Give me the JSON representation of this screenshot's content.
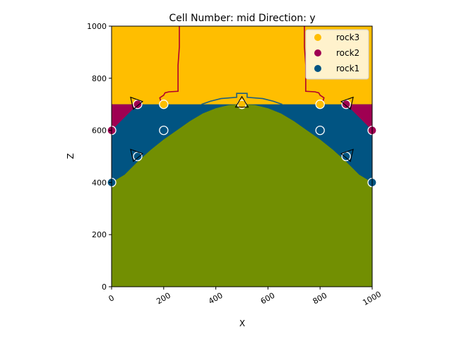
{
  "chart_data": {
    "type": "geological-section",
    "title": "Cell Number: mid Direction: y",
    "xlabel": "X",
    "ylabel": "Z",
    "xlim": [
      0,
      1000
    ],
    "ylim": [
      0,
      1000
    ],
    "xticks": [
      "0",
      "200",
      "400",
      "600",
      "800",
      "1000"
    ],
    "yticks": [
      "0",
      "200",
      "400",
      "600",
      "800",
      "1000"
    ],
    "grid": false,
    "legend": {
      "placement": "top-right",
      "entries": [
        {
          "label": "rock3",
          "color": "#ffbe00"
        },
        {
          "label": "rock2",
          "color": "#9f0052"
        },
        {
          "label": "rock1",
          "color": "#015482"
        }
      ]
    },
    "basement_color": "#728f02",
    "contact_line_color": "#b1002d",
    "contact_line_color_lower": "#1d5f80",
    "surfaces": {
      "rock3_rock2_base_z": 700,
      "rock1_top_left": [
        [
          0,
          700
        ],
        [
          100,
          700
        ],
        [
          200,
          700
        ],
        [
          300,
          700
        ]
      ],
      "rock2_wedge_left": [
        [
          0,
          700
        ],
        [
          100,
          700
        ],
        [
          0,
          600
        ]
      ],
      "rock2_wedge_right": [
        [
          900,
          700
        ],
        [
          1000,
          700
        ],
        [
          1000,
          600
        ]
      ],
      "rock1_base_dome": [
        [
          0,
          400
        ],
        [
          50,
          430
        ],
        [
          100,
          480
        ],
        [
          150,
          525
        ],
        [
          200,
          565
        ],
        [
          250,
          600
        ],
        [
          300,
          635
        ],
        [
          350,
          665
        ],
        [
          400,
          685
        ],
        [
          450,
          697
        ],
        [
          500,
          700
        ],
        [
          550,
          697
        ],
        [
          600,
          685
        ],
        [
          650,
          665
        ],
        [
          700,
          635
        ],
        [
          750,
          600
        ],
        [
          800,
          565
        ],
        [
          850,
          525
        ],
        [
          900,
          480
        ],
        [
          950,
          430
        ],
        [
          1000,
          400
        ]
      ]
    },
    "fault_lines": [
      [
        [
          260,
          1000
        ],
        [
          260,
          920
        ],
        [
          255,
          850
        ],
        [
          255,
          750
        ],
        [
          220,
          748
        ],
        [
          205,
          744
        ],
        [
          200,
          735
        ],
        [
          185,
          725
        ],
        [
          190,
          708
        ],
        [
          200,
          700
        ]
      ],
      [
        [
          740,
          1000
        ],
        [
          740,
          920
        ],
        [
          745,
          850
        ],
        [
          745,
          750
        ],
        [
          780,
          748
        ],
        [
          795,
          744
        ],
        [
          800,
          735
        ],
        [
          815,
          725
        ],
        [
          810,
          708
        ],
        [
          800,
          700
        ]
      ]
    ],
    "dome_contour": [
      [
        345,
        700
      ],
      [
        380,
        712
      ],
      [
        420,
        722
      ],
      [
        480,
        727
      ],
      [
        480,
        742
      ],
      [
        520,
        742
      ],
      [
        520,
        727
      ],
      [
        580,
        722
      ],
      [
        620,
        712
      ],
      [
        655,
        700
      ]
    ],
    "points": [
      {
        "x": 0,
        "z": 400,
        "color": "#015482"
      },
      {
        "x": 100,
        "z": 500,
        "color": "#015482"
      },
      {
        "x": 200,
        "z": 600,
        "color": "#015482"
      },
      {
        "x": 800,
        "z": 600,
        "color": "#015482"
      },
      {
        "x": 900,
        "z": 500,
        "color": "#015482"
      },
      {
        "x": 1000,
        "z": 400,
        "color": "#015482"
      },
      {
        "x": 0,
        "z": 600,
        "color": "#9f0052"
      },
      {
        "x": 100,
        "z": 700,
        "color": "#9f0052"
      },
      {
        "x": 900,
        "z": 700,
        "color": "#9f0052"
      },
      {
        "x": 1000,
        "z": 600,
        "color": "#9f0052"
      },
      {
        "x": 200,
        "z": 700,
        "color": "#ffbe00"
      },
      {
        "x": 500,
        "z": 700,
        "color": "#ffbe00"
      },
      {
        "x": 800,
        "z": 700,
        "color": "#ffbe00"
      }
    ],
    "orientations": [
      {
        "x": 100,
        "z": 700,
        "dir": "left"
      },
      {
        "x": 900,
        "z": 700,
        "dir": "right"
      },
      {
        "x": 100,
        "z": 500,
        "dir": "left"
      },
      {
        "x": 900,
        "z": 500,
        "dir": "right"
      },
      {
        "x": 500,
        "z": 700,
        "dir": "up"
      }
    ]
  }
}
